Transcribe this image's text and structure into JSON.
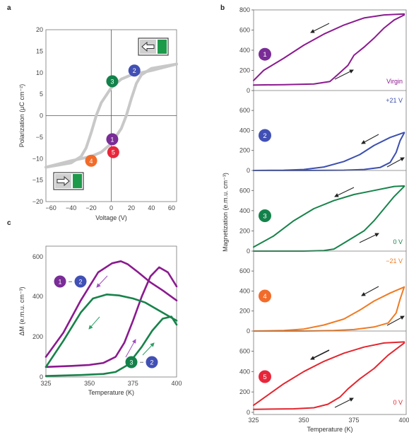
{
  "panels": {
    "a": "a",
    "b": "b",
    "c": "c"
  },
  "colors": {
    "purple": "#8b1a8f",
    "blue": "#3c4fb0",
    "green": "#17834a",
    "orange": "#f07a22",
    "red": "#e3262f",
    "grey": "#c8c8c8",
    "badge_purple": "#7a2c97",
    "badge_blue": "#4150b5",
    "badge_green": "#13824a",
    "badge_orange": "#f26b29",
    "badge_red": "#e8263a"
  },
  "chart_data": [
    {
      "id": "a",
      "type": "line",
      "xlabel": "Voltage (V)",
      "ylabel": "Polarization (μC cm⁻²)",
      "xlim": [
        -65,
        65
      ],
      "ylim": [
        -20,
        20
      ],
      "xticks": [
        "−60",
        "−40",
        "−20",
        "0",
        "20",
        "40",
        "60"
      ],
      "yticks": [
        "20",
        "15",
        "10",
        "5",
        "0",
        "−5",
        "−10",
        "−15",
        "−20"
      ],
      "series": [
        {
          "branch": "up",
          "x": [
            -65,
            -40,
            -20,
            -10,
            0,
            10,
            15,
            20,
            25,
            30,
            40,
            65
          ],
          "y": [
            -12,
            -10.5,
            -9.5,
            -8.5,
            -6.5,
            -3,
            0,
            4,
            7.5,
            9.5,
            11,
            12
          ]
        },
        {
          "branch": "down",
          "x": [
            65,
            40,
            20,
            10,
            0,
            -10,
            -15,
            -20,
            -25,
            -30,
            -40,
            -65
          ],
          "y": [
            12,
            10.5,
            9.5,
            8.5,
            6.5,
            3,
            0,
            -4,
            -7.5,
            -9.5,
            -11,
            -12
          ]
        }
      ],
      "states": [
        {
          "label": "1",
          "x": 1,
          "y": -5.5,
          "color": "badge_purple"
        },
        {
          "label": "2",
          "x": 23,
          "y": 10.5,
          "color": "badge_blue"
        },
        {
          "label": "3",
          "x": 1,
          "y": 8,
          "color": "badge_green"
        },
        {
          "label": "4",
          "x": -20,
          "y": -10.5,
          "color": "badge_orange"
        },
        {
          "label": "5",
          "x": 2,
          "y": -8.5,
          "color": "badge_red"
        }
      ]
    },
    {
      "id": "b",
      "type": "line",
      "xlabel": "Temperature (K)",
      "ylabel": "Magnetization (e.m.u. cm⁻³)",
      "xlim": [
        325,
        401
      ],
      "xticks": [
        "325",
        "350",
        "375",
        "400"
      ],
      "subpanels": [
        {
          "state": "1",
          "label": "Virgin",
          "color": "purple",
          "ylim": [
            0,
            800
          ],
          "yticks": [
            "0",
            "200",
            "400",
            "600",
            "800"
          ],
          "heating": {
            "x": [
              325,
              340,
              355,
              363,
              367,
              372,
              375,
              380,
              385,
              390,
              395,
              400
            ],
            "y": [
              55,
              58,
              65,
              90,
              160,
              250,
              350,
              430,
              520,
              620,
              700,
              750
            ]
          },
          "cooling": {
            "x": [
              400,
              390,
              380,
              370,
              360,
              350,
              340,
              330,
              325
            ],
            "y": [
              760,
              750,
              720,
              650,
              560,
              450,
              320,
              200,
              100
            ]
          }
        },
        {
          "state": "2",
          "label": "+21 V",
          "color": "blue",
          "ylim": [
            0,
            700
          ],
          "yticks": [
            "0",
            "200",
            "400",
            "600"
          ],
          "heating": {
            "x": [
              325,
              350,
              370,
              380,
              388,
              393,
              396,
              398,
              400
            ],
            "y": [
              0,
              0,
              3,
              10,
              30,
              80,
              180,
              300,
              375
            ]
          },
          "cooling": {
            "x": [
              400,
              393,
              385,
              378,
              370,
              360,
              350,
              340,
              325
            ],
            "y": [
              380,
              330,
              250,
              160,
              90,
              35,
              10,
              3,
              0
            ]
          }
        },
        {
          "state": "3",
          "label": "0 V",
          "color": "green",
          "ylim": [
            0,
            700
          ],
          "yticks": [
            "0",
            "200",
            "400",
            "600"
          ],
          "heating": {
            "x": [
              325,
              350,
              360,
              365,
              370,
              375,
              380,
              385,
              390,
              395,
              400
            ],
            "y": [
              0,
              0,
              5,
              20,
              80,
              140,
              200,
              300,
              420,
              540,
              640
            ]
          },
          "cooling": {
            "x": [
              400,
              395,
              385,
              375,
              365,
              355,
              345,
              335,
              325
            ],
            "y": [
              645,
              640,
              600,
              560,
              500,
              420,
              300,
              150,
              40
            ]
          }
        },
        {
          "state": "4",
          "label": "−21 V",
          "color": "orange",
          "ylim": [
            0,
            700
          ],
          "yticks": [
            "0",
            "200",
            "400",
            "600"
          ],
          "heating": {
            "x": [
              325,
              350,
              365,
              375,
              385,
              392,
              396,
              398,
              400
            ],
            "y": [
              0,
              0,
              5,
              15,
              40,
              80,
              180,
              320,
              440
            ]
          },
          "cooling": {
            "x": [
              400,
              393,
              385,
              378,
              370,
              360,
              350,
              340,
              325
            ],
            "y": [
              440,
              380,
              300,
              210,
              120,
              60,
              20,
              5,
              0
            ]
          }
        },
        {
          "state": "5",
          "label": "0 V",
          "color": "red",
          "ylim": [
            0,
            700
          ],
          "yticks": [
            "0",
            "200",
            "400",
            "600"
          ],
          "heating": {
            "x": [
              325,
              345,
              355,
              362,
              368,
              372,
              378,
              385,
              392,
              400
            ],
            "y": [
              30,
              35,
              45,
              80,
              150,
              230,
              330,
              430,
              560,
              680
            ]
          },
          "cooling": {
            "x": [
              400,
              390,
              380,
              370,
              360,
              350,
              340,
              330,
              325
            ],
            "y": [
              690,
              680,
              640,
              580,
              500,
              400,
              280,
              140,
              70
            ]
          }
        }
      ]
    },
    {
      "id": "c",
      "type": "line",
      "xlabel": "Temperature (K)",
      "ylabel": "ΔM (e.m.u. cm⁻³)",
      "xlim": [
        325,
        400
      ],
      "ylim": [
        0,
        650
      ],
      "xticks": [
        "325",
        "350",
        "375",
        "400"
      ],
      "yticks": [
        "0",
        "200",
        "400",
        "600"
      ],
      "legend": [
        {
          "a": "1",
          "op": "−",
          "b": "2",
          "color": "purple"
        },
        {
          "a": "3",
          "op": "−",
          "b": "2",
          "color": "green"
        }
      ],
      "series": [
        {
          "name": "1 − 2",
          "branch": "cooling",
          "color": "purple",
          "x": [
            325,
            335,
            345,
            355,
            363,
            368,
            372,
            378,
            385,
            392,
            400
          ],
          "y": [
            100,
            220,
            380,
            520,
            565,
            575,
            560,
            520,
            470,
            430,
            380
          ]
        },
        {
          "name": "1 − 2",
          "branch": "heating",
          "color": "purple",
          "x": [
            325,
            340,
            350,
            358,
            365,
            370,
            375,
            380,
            385,
            390,
            395,
            400
          ],
          "y": [
            50,
            55,
            60,
            70,
            100,
            170,
            280,
            400,
            500,
            545,
            520,
            450
          ]
        },
        {
          "name": "3 − 2",
          "branch": "cooling",
          "color": "green",
          "x": [
            325,
            335,
            345,
            352,
            360,
            367,
            375,
            382,
            390,
            396,
            400
          ],
          "y": [
            50,
            180,
            320,
            390,
            410,
            405,
            390,
            370,
            330,
            300,
            280
          ]
        },
        {
          "name": "3 − 2",
          "branch": "heating",
          "color": "green",
          "x": [
            325,
            345,
            358,
            365,
            372,
            380,
            386,
            392,
            397,
            400
          ],
          "y": [
            5,
            10,
            15,
            25,
            60,
            150,
            230,
            290,
            300,
            260
          ]
        }
      ]
    }
  ]
}
